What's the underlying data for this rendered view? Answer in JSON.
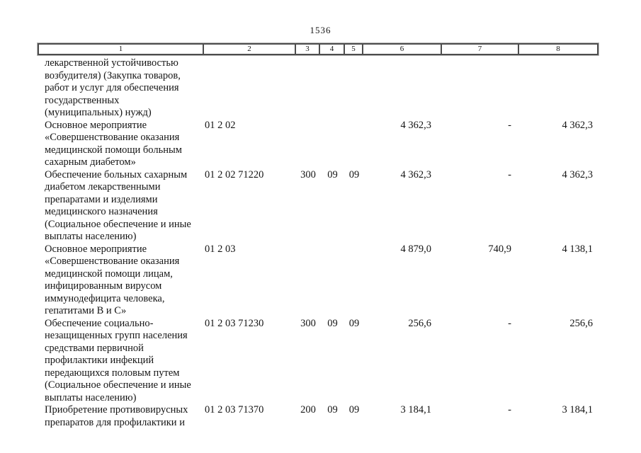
{
  "page": {
    "number": "1536"
  },
  "table": {
    "column_numbers": [
      "1",
      "2",
      "3",
      "4",
      "5",
      "6",
      "7",
      "8"
    ],
    "rows": [
      {
        "name": "лекарственной устойчивостью\nвозбудителя) (Закупка товаров,\nработ и услуг для обеспечения\nгосударственных\n(муниципальных) нужд)",
        "code": "",
        "expense_type": "",
        "section": "",
        "subsection": "",
        "amount_total": "",
        "amount_federal": "",
        "amount_regional": ""
      },
      {
        "name": "Основное мероприятие\n«Совершенствование оказания\nмедицинской помощи больным\nсахарным диабетом»",
        "code": "01 2 02",
        "expense_type": "",
        "section": "",
        "subsection": "",
        "amount_total": "4 362,3",
        "amount_federal": "-",
        "amount_regional": "4 362,3"
      },
      {
        "name": "Обеспечение больных сахарным\nдиабетом лекарственными\nпрепаратами и изделиями\nмедицинского назначения\n(Социальное обеспечение и иные\nвыплаты населению)",
        "code": "01 2 02 71220",
        "expense_type": "300",
        "section": "09",
        "subsection": "09",
        "amount_total": "4 362,3",
        "amount_federal": "-",
        "amount_regional": "4 362,3"
      },
      {
        "name": "Основное мероприятие\n«Совершенствование оказания\nмедицинской помощи лицам,\nинфицированным вирусом\nиммунодефицита человека,\nгепатитами В и С»",
        "code": "01 2 03",
        "expense_type": "",
        "section": "",
        "subsection": "",
        "amount_total": "4 879,0",
        "amount_federal": "740,9",
        "amount_regional": "4 138,1"
      },
      {
        "name": "Обеспечение социально-\nнезащищенных групп населения\nсредствами первичной\nпрофилактики инфекций\nпередающихся половым путем\n(Социальное обеспечение и иные\nвыплаты населению)",
        "code": "01 2 03 71230",
        "expense_type": "300",
        "section": "09",
        "subsection": "09",
        "amount_total": "256,6",
        "amount_federal": "-",
        "amount_regional": "256,6"
      },
      {
        "name": "Приобретение противовирусных\nпрепаратов для профилактики и",
        "code": "01 2 03 71370",
        "expense_type": "200",
        "section": "09",
        "subsection": "09",
        "amount_total": "3 184,1",
        "amount_federal": "-",
        "amount_regional": "3 184,1"
      }
    ]
  }
}
